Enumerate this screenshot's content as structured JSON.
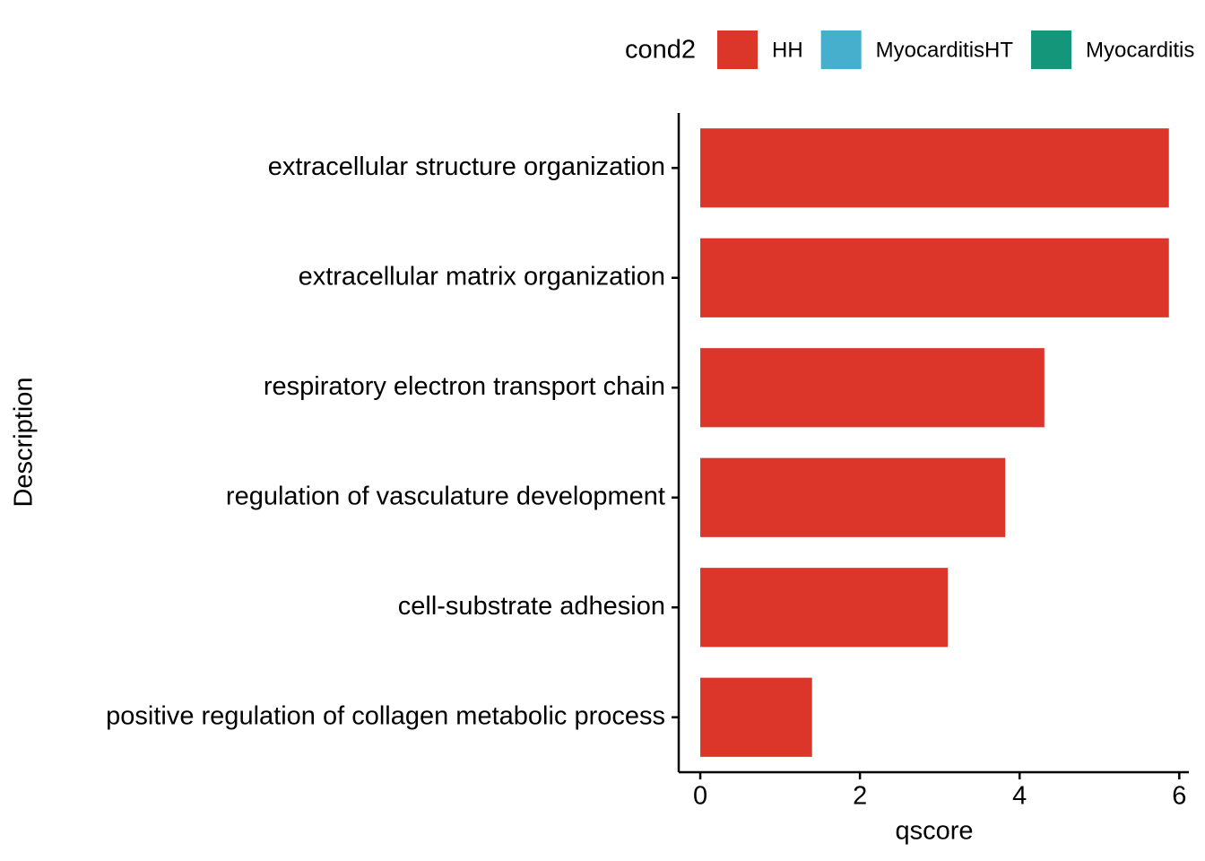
{
  "chart_data": {
    "type": "bar",
    "orientation": "horizontal",
    "x_label": "qscore",
    "y_label": "Description",
    "legend_title": "cond2",
    "legend_position": "top",
    "categories": [
      "extracellular structure organization",
      "extracellular matrix organization",
      "respiratory electron transport chain",
      "regulation of vasculature development",
      "cell-substrate adhesion",
      "positive regulation of collagen metabolic process"
    ],
    "series": [
      {
        "name": "HH",
        "color": "#dc3529",
        "values": [
          5.87,
          5.87,
          4.31,
          3.82,
          3.1,
          1.4
        ]
      },
      {
        "name": "MyocarditisHT",
        "color": "#46afce",
        "values": [
          null,
          null,
          null,
          null,
          null,
          null
        ]
      },
      {
        "name": "Myocarditis",
        "color": "#13967a",
        "values": [
          null,
          null,
          null,
          null,
          null,
          null
        ]
      }
    ],
    "xlim": [
      -0.27,
      6.12
    ],
    "xticks": [
      0,
      2,
      4,
      6
    ],
    "grid": false
  }
}
